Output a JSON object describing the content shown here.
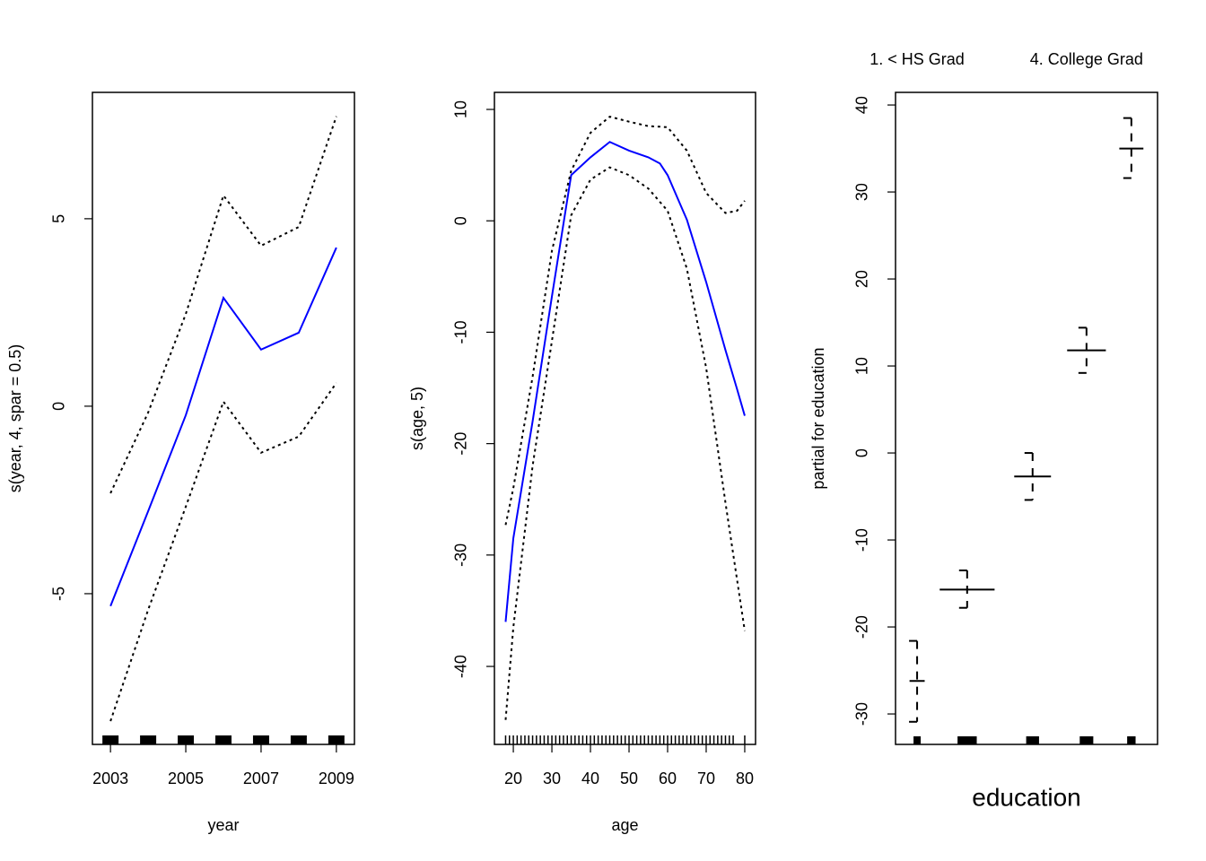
{
  "chart_data": [
    {
      "type": "line",
      "xlabel": "year",
      "ylabel": "s(year, 4, spar = 0.5)",
      "x": [
        2003,
        2004,
        2005,
        2006,
        2007,
        2008,
        2009
      ],
      "series": [
        {
          "color": "#0000ff",
          "style": "solid",
          "values": [
            -5.33,
            -2.8,
            -0.24,
            2.89,
            1.51,
            1.96,
            4.23
          ]
        },
        {
          "color": "#000000",
          "style": "dotted",
          "values": [
            -2.32,
            -0.17,
            2.46,
            5.62,
            4.28,
            4.78,
            7.73
          ]
        },
        {
          "color": "#000000",
          "style": "dotted",
          "values": [
            -8.4,
            -5.43,
            -2.68,
            0.12,
            -1.24,
            -0.81,
            0.62
          ]
        }
      ],
      "rug": [
        2003,
        2004,
        2005,
        2006,
        2007,
        2008,
        2009
      ],
      "xlim": [
        2002.52,
        2009.48
      ],
      "xticks": [
        2003,
        2005,
        2007,
        2009
      ],
      "ylim": [
        -9.02,
        8.37
      ],
      "yticks": [
        -5,
        0,
        5
      ]
    },
    {
      "type": "line",
      "xlabel": "age",
      "ylabel": "s(age, 5)",
      "x": [
        18,
        20,
        25,
        30,
        35,
        40,
        45,
        50,
        55,
        58,
        60,
        65,
        70,
        75,
        78,
        80
      ],
      "series": [
        {
          "color": "#0000ff",
          "style": "solid",
          "values": [
            -36,
            -28.5,
            -18,
            -6.8,
            4.1,
            5.7,
            7.08,
            6.3,
            5.7,
            5.15,
            4.1,
            0.1,
            -5.5,
            -11.6,
            -15.1,
            -17.5
          ]
        },
        {
          "color": "#000000",
          "style": "dotted",
          "values": [
            -27.3,
            -24,
            -14,
            -2.7,
            4.5,
            7.9,
            9.35,
            8.9,
            8.5,
            8.45,
            8.4,
            6.3,
            2.5,
            0.7,
            0.9,
            1.8
          ]
        },
        {
          "color": "#000000",
          "style": "dotted",
          "values": [
            -44.8,
            -36.5,
            -22,
            -10.8,
            0.5,
            3.7,
            4.8,
            4.1,
            2.9,
            1.7,
            0.9,
            -4.3,
            -13.2,
            -25.3,
            -32.2,
            -36.8
          ]
        }
      ],
      "rug": [
        18,
        19,
        20,
        21,
        22,
        23,
        24,
        25,
        26,
        27,
        28,
        29,
        30,
        31,
        32,
        33,
        34,
        35,
        36,
        37,
        38,
        39,
        40,
        41,
        42,
        43,
        44,
        45,
        46,
        47,
        48,
        49,
        50,
        51,
        52,
        53,
        54,
        55,
        56,
        57,
        58,
        59,
        60,
        61,
        62,
        63,
        64,
        65,
        66,
        67,
        68,
        69,
        70,
        71,
        72,
        73,
        74,
        75,
        76,
        77,
        80
      ],
      "xlim": [
        15.1,
        82.8
      ],
      "xticks": [
        20,
        30,
        40,
        50,
        60,
        70,
        80
      ],
      "ylim": [
        -47,
        11.53
      ],
      "yticks": [
        -40,
        -30,
        -20,
        -10,
        0,
        10
      ]
    },
    {
      "type": "factor",
      "xlabel": "education",
      "ylabel": "partial for education",
      "categories": [
        "1. < HS Grad",
        null,
        null,
        "4. College Grad",
        null
      ],
      "counts": [
        268,
        971,
        650,
        685,
        426
      ],
      "values": [
        -26.2,
        -15.7,
        -2.7,
        11.8,
        35.0
      ],
      "upper": [
        -21.6,
        -13.5,
        0,
        14.4,
        38.5
      ],
      "lower": [
        -30.9,
        -17.8,
        -5.4,
        9.2,
        31.6
      ],
      "ylim": [
        -33.5,
        41.45
      ],
      "yticks": [
        -30,
        -20,
        -10,
        0,
        10,
        20,
        30,
        40
      ]
    }
  ]
}
